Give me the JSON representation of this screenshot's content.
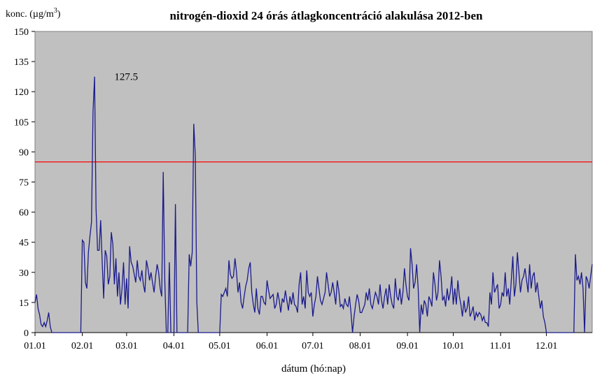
{
  "chart_data": {
    "type": "line",
    "title": "nitrogén-dioxid  24 órás átlagkoncentráció  alakulása 2012-ben",
    "ylabel": "konc. (µg/m",
    "ylabel_sup": "3",
    "ylabel_end": ")",
    "xlabel": "dátum (hó:nap)",
    "ylim": [
      0,
      150
    ],
    "yticks": [
      0,
      15,
      30,
      45,
      60,
      75,
      90,
      105,
      120,
      135,
      150
    ],
    "xlim": [
      1,
      366
    ],
    "xticks": [
      {
        "label": "01.01",
        "day": 1
      },
      {
        "label": "02.01",
        "day": 32
      },
      {
        "label": "03.01",
        "day": 61
      },
      {
        "label": "04.01",
        "day": 92
      },
      {
        "label": "05.01",
        "day": 122
      },
      {
        "label": "06.01",
        "day": 153
      },
      {
        "label": "07.01",
        "day": 183
      },
      {
        "label": "08.01",
        "day": 214
      },
      {
        "label": "09.01",
        "day": 245
      },
      {
        "label": "10.01",
        "day": 275
      },
      {
        "label": "11.01",
        "day": 306
      },
      {
        "label": "12.01",
        "day": 336
      }
    ],
    "background": "#c0c0c0",
    "line_color": "#1a1a8c",
    "limit_line": {
      "value": 85,
      "color": "#ff0000"
    },
    "annotation": {
      "text": "127.5",
      "day": 42,
      "value": 127.5
    },
    "series": [
      {
        "day": [
          1,
          2,
          3,
          4,
          5,
          6,
          7,
          8,
          9,
          10,
          11,
          12,
          13,
          14,
          15,
          16,
          17,
          18,
          19,
          20,
          21,
          22,
          23,
          24,
          25,
          26,
          27,
          28,
          29,
          30,
          31,
          32,
          33,
          34,
          35,
          36,
          37,
          38,
          39,
          40,
          41,
          42,
          43,
          44,
          45,
          46,
          47,
          48,
          49,
          50,
          51,
          52,
          53,
          54,
          55,
          56,
          57,
          58,
          59,
          60,
          61,
          62,
          63,
          64,
          65,
          66,
          67,
          68,
          69,
          70,
          71,
          72,
          73,
          74,
          75,
          76,
          77,
          78,
          79,
          80,
          81,
          82,
          83,
          84,
          85,
          86,
          87,
          88,
          89,
          90,
          91,
          92,
          93,
          94,
          95,
          96,
          97,
          98,
          99,
          100,
          101,
          102,
          103,
          104,
          105,
          106,
          107,
          108,
          109,
          110,
          111,
          112,
          113,
          114,
          115,
          116,
          117,
          118,
          119,
          120,
          121,
          122,
          123,
          124,
          125,
          126,
          127,
          128,
          129,
          130,
          131,
          132,
          133,
          134,
          135,
          136,
          137,
          138,
          139,
          140,
          141,
          142,
          143,
          144,
          145,
          146,
          147,
          148,
          149,
          150,
          151,
          152,
          153,
          154,
          155,
          156,
          157,
          158,
          159,
          160,
          161,
          162,
          163,
          164,
          165,
          166,
          167,
          168,
          169,
          170,
          171,
          172,
          173,
          174,
          175,
          176,
          177,
          178,
          179,
          180,
          181,
          182,
          183,
          184,
          185,
          186,
          187,
          188,
          189,
          190,
          191,
          192,
          193,
          194,
          195,
          196,
          197,
          198,
          199,
          200,
          201,
          202,
          203,
          204,
          205,
          206,
          207,
          208,
          209,
          210,
          211,
          212,
          213,
          214,
          215,
          216,
          217,
          218,
          219,
          220,
          221,
          222,
          223,
          224,
          225,
          226,
          227,
          228,
          229,
          230,
          231,
          232,
          233,
          234,
          235,
          236,
          237,
          238,
          239,
          240,
          241,
          242,
          243,
          244,
          245,
          246,
          247,
          248,
          249,
          250,
          251,
          252,
          253,
          254,
          255,
          256,
          257,
          258,
          259,
          260,
          261,
          262,
          263,
          264,
          265,
          266,
          267,
          268,
          269,
          270,
          271,
          272,
          273,
          274,
          275,
          276,
          277,
          278,
          279,
          280,
          281,
          282,
          283,
          284,
          285,
          286,
          287,
          288,
          289,
          290,
          291,
          292,
          293,
          294,
          295,
          296,
          297,
          298,
          299,
          300,
          301,
          302,
          303,
          304,
          305,
          306,
          307,
          308,
          309,
          310,
          311,
          312,
          313,
          314,
          315,
          316,
          317,
          318,
          319,
          320,
          321,
          322,
          323,
          324,
          325,
          326,
          327,
          328,
          329,
          330,
          331,
          332,
          333,
          334,
          335,
          336,
          337,
          338,
          339,
          340,
          341,
          342,
          343,
          344,
          345,
          346,
          347,
          348,
          349,
          350,
          351,
          352,
          353,
          354,
          355,
          356,
          357,
          358,
          359,
          360,
          361,
          362,
          363,
          364,
          365,
          366
        ],
        "values": [
          15,
          19,
          12,
          9,
          4,
          3,
          5,
          3,
          6,
          10,
          3,
          0,
          0,
          0,
          0,
          0,
          0,
          0,
          0,
          0,
          0,
          0,
          0,
          0,
          0,
          0,
          0,
          0,
          0,
          0,
          0,
          46,
          45,
          25,
          22,
          40,
          48,
          55,
          110,
          127.5,
          62,
          41,
          41,
          56,
          35,
          17,
          41,
          38,
          24,
          28,
          50,
          44,
          24,
          37,
          18,
          30,
          14,
          22,
          35,
          14,
          27,
          12,
          43,
          35,
          33,
          29,
          25,
          36,
          28,
          26,
          31,
          24,
          20,
          36,
          32,
          26,
          30,
          25,
          20,
          28,
          34,
          30,
          22,
          18,
          80,
          26,
          0,
          0,
          35,
          0,
          0,
          0,
          64,
          0,
          0,
          0,
          0,
          0,
          0,
          0,
          0,
          39,
          33,
          40,
          104,
          88,
          15,
          0,
          0,
          0,
          0,
          0,
          0,
          0,
          0,
          0,
          0,
          0,
          0,
          0,
          0,
          0,
          19,
          18,
          20,
          22,
          18,
          36,
          29,
          27,
          28,
          37,
          30,
          20,
          25,
          15,
          12,
          18,
          23,
          26,
          32,
          35,
          20,
          14,
          10,
          22,
          12,
          9,
          18,
          18,
          15,
          14,
          26,
          21,
          17,
          18,
          19,
          12,
          14,
          20,
          16,
          10,
          17,
          15,
          21,
          16,
          11,
          18,
          14,
          20,
          14,
          13,
          10,
          24,
          30,
          14,
          18,
          12,
          31,
          20,
          18,
          20,
          8,
          14,
          18,
          28,
          22,
          16,
          14,
          17,
          20,
          30,
          24,
          18,
          20,
          25,
          20,
          14,
          26,
          21,
          13,
          14,
          12,
          17,
          14,
          13,
          18,
          10,
          0,
          8,
          14,
          19,
          16,
          10,
          10,
          12,
          14,
          20,
          16,
          22,
          14,
          12,
          16,
          20,
          18,
          14,
          24,
          16,
          12,
          18,
          22,
          14,
          24,
          18,
          14,
          12,
          27,
          18,
          16,
          22,
          14,
          20,
          32,
          24,
          18,
          16,
          42,
          34,
          22,
          25,
          34,
          22,
          0,
          14,
          9,
          16,
          14,
          8,
          18,
          16,
          13,
          30,
          24,
          16,
          20,
          36,
          28,
          16,
          18,
          13,
          22,
          16,
          20,
          28,
          14,
          22,
          14,
          26,
          18,
          14,
          8,
          16,
          10,
          12,
          18,
          8,
          10,
          13,
          6,
          10,
          8,
          10,
          9,
          6,
          8,
          5,
          5,
          3,
          20,
          14,
          30,
          20,
          22,
          24,
          12,
          14,
          20,
          18,
          30,
          18,
          22,
          14,
          26,
          38,
          18,
          24,
          40,
          30,
          20,
          26,
          28,
          32,
          26,
          20,
          34,
          22,
          28,
          30,
          20,
          25,
          18,
          12,
          16,
          8,
          5,
          0,
          0,
          0,
          0,
          0,
          0,
          0,
          0,
          0,
          0,
          0,
          0,
          0,
          0,
          0,
          0,
          0,
          0,
          0,
          39,
          26,
          28,
          24,
          30,
          22,
          0,
          28,
          26,
          22,
          28,
          34,
          24,
          34,
          35
        ]
      }
    ]
  }
}
